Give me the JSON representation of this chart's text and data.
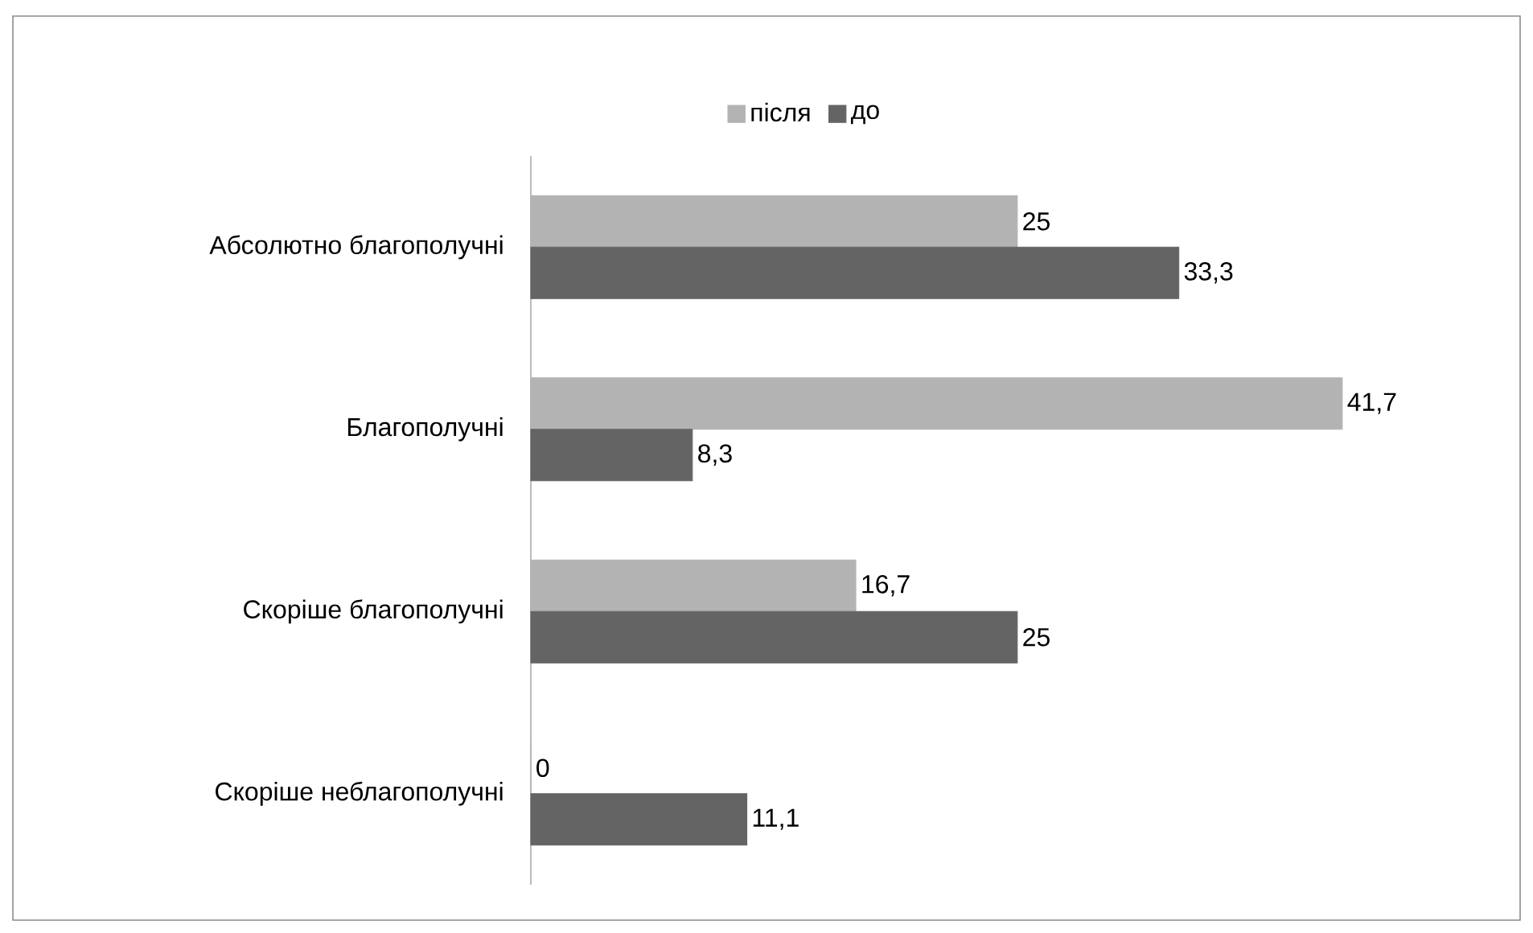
{
  "chart_data": {
    "type": "bar",
    "orientation": "horizontal",
    "categories": [
      "Абсолютно благополучні",
      "Благополучні",
      "Скоріше благополучні",
      "Скоріше неблагополучні"
    ],
    "series": [
      {
        "name": "після",
        "color": "#b3b3b3",
        "values": [
          25,
          41.7,
          16.7,
          0
        ],
        "value_labels": [
          "25",
          "41,7",
          "16,7",
          "0"
        ]
      },
      {
        "name": "до",
        "color": "#646464",
        "values": [
          33.3,
          8.3,
          25,
          11.1
        ],
        "value_labels": [
          "33,3",
          "8,3",
          "25",
          "11,1"
        ]
      }
    ],
    "legend": "top"
  }
}
